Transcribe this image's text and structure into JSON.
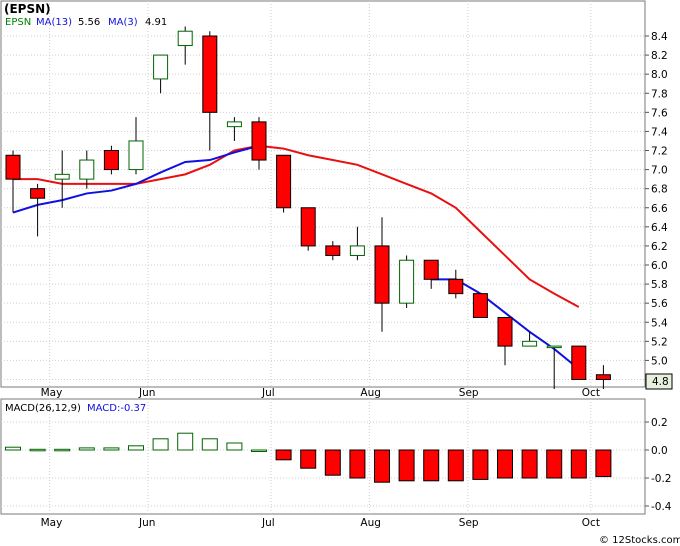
{
  "title": "(EPSN)",
  "watermark": "© 12Stocks.com",
  "colors": {
    "up": "#ffffff",
    "down": "#ff0000",
    "ma_short": "#1010e0",
    "ma_long": "#e81010",
    "macd_pos": "#ffffff",
    "macd_neg": "#ff0000",
    "grid": "#cfcfcf",
    "border": "#7a7a7a",
    "legend_ticker": "#008000",
    "legend_ma13": "#1010e0",
    "legend_ma3": "#1010e0"
  },
  "legend": {
    "ticker": "EPSN",
    "ma13_label": "MA(13)",
    "ma13_value": "5.56",
    "ma3_label": "MA(3)",
    "ma3_value": "4.91"
  },
  "macd_legend": {
    "label": "MACD(26,12,9)",
    "value_label": "MACD:-0.37"
  },
  "last_price_label": "4.8",
  "chart_data": [
    {
      "type": "candlestick",
      "x_labels": [
        "May",
        "Jun",
        "Jul",
        "Aug",
        "Sep",
        "Oct"
      ],
      "x_label_index": [
        1,
        5,
        10,
        14,
        18,
        23
      ],
      "y_ticks": [
        "4.8",
        "5.0",
        "5.2",
        "5.4",
        "5.6",
        "5.8",
        "6.0",
        "6.2",
        "6.4",
        "6.6",
        "6.8",
        "7.0",
        "7.2",
        "7.4",
        "7.6",
        "7.8",
        "8.0",
        "8.2",
        "8.4"
      ],
      "ylim": [
        4.7,
        8.6
      ],
      "candles": [
        {
          "o": 7.15,
          "h": 7.2,
          "l": 6.55,
          "c": 6.9
        },
        {
          "o": 6.8,
          "h": 6.85,
          "l": 6.3,
          "c": 6.7
        },
        {
          "o": 6.9,
          "h": 7.2,
          "l": 6.6,
          "c": 6.95
        },
        {
          "o": 6.9,
          "h": 7.2,
          "l": 6.8,
          "c": 7.1
        },
        {
          "o": 7.2,
          "h": 7.25,
          "l": 6.95,
          "c": 7.0
        },
        {
          "o": 7.0,
          "h": 7.55,
          "l": 6.95,
          "c": 7.3
        },
        {
          "o": 7.95,
          "h": 8.2,
          "l": 7.8,
          "c": 8.2
        },
        {
          "o": 8.3,
          "h": 8.5,
          "l": 8.1,
          "c": 8.45
        },
        {
          "o": 8.4,
          "h": 8.45,
          "l": 7.2,
          "c": 7.6
        },
        {
          "o": 7.45,
          "h": 7.55,
          "l": 7.3,
          "c": 7.5
        },
        {
          "o": 7.5,
          "h": 7.55,
          "l": 7.0,
          "c": 7.1
        },
        {
          "o": 7.15,
          "h": 7.15,
          "l": 6.55,
          "c": 6.6
        },
        {
          "o": 6.6,
          "h": 6.6,
          "l": 6.15,
          "c": 6.2
        },
        {
          "o": 6.2,
          "h": 6.25,
          "l": 6.05,
          "c": 6.1
        },
        {
          "o": 6.1,
          "h": 6.4,
          "l": 6.05,
          "c": 6.2
        },
        {
          "o": 6.2,
          "h": 6.5,
          "l": 5.3,
          "c": 5.6
        },
        {
          "o": 5.6,
          "h": 6.1,
          "l": 5.55,
          "c": 6.05
        },
        {
          "o": 6.05,
          "h": 6.05,
          "l": 5.75,
          "c": 5.85
        },
        {
          "o": 5.85,
          "h": 5.95,
          "l": 5.65,
          "c": 5.7
        },
        {
          "o": 5.7,
          "h": 5.7,
          "l": 5.45,
          "c": 5.45
        },
        {
          "o": 5.45,
          "h": 5.45,
          "l": 4.95,
          "c": 5.15
        },
        {
          "o": 5.15,
          "h": 5.3,
          "l": 5.15,
          "c": 5.2
        },
        {
          "o": 5.15,
          "h": 5.15,
          "l": 4.7,
          "c": 5.15
        },
        {
          "o": 5.15,
          "h": 5.15,
          "l": 4.8,
          "c": 4.8
        },
        {
          "o": 4.85,
          "h": 4.95,
          "l": 4.7,
          "c": 4.8
        }
      ],
      "series": [
        {
          "name": "MA(13)",
          "values": [
            6.9,
            6.9,
            6.85,
            6.85,
            6.85,
            6.85,
            6.9,
            6.95,
            7.05,
            7.2,
            7.25,
            7.22,
            7.15,
            7.1,
            7.05,
            6.95,
            6.85,
            6.75,
            6.6,
            6.35,
            6.1,
            5.85,
            5.7,
            5.56
          ]
        },
        {
          "name": "MA(3)",
          "values": [
            6.55,
            6.63,
            6.68,
            6.75,
            6.78,
            6.85,
            6.97,
            7.08,
            7.1,
            7.18,
            7.25,
            null,
            null,
            null,
            null,
            null,
            null,
            5.85,
            5.85,
            5.7,
            5.5,
            5.3,
            5.12,
            4.91
          ]
        }
      ]
    },
    {
      "type": "bar",
      "title": "MACD(26,12,9)",
      "y_ticks": [
        "0.2",
        "0.0",
        "-0.2",
        "-0.4"
      ],
      "ylim": [
        -0.46,
        0.3
      ],
      "values": [
        0.02,
        0.005,
        0.005,
        0.015,
        0.015,
        0.03,
        0.08,
        0.12,
        0.08,
        0.05,
        0.0,
        -0.07,
        -0.13,
        -0.18,
        -0.2,
        -0.23,
        -0.22,
        -0.22,
        -0.22,
        -0.21,
        -0.2,
        -0.2,
        -0.2,
        -0.2,
        -0.19
      ]
    }
  ]
}
